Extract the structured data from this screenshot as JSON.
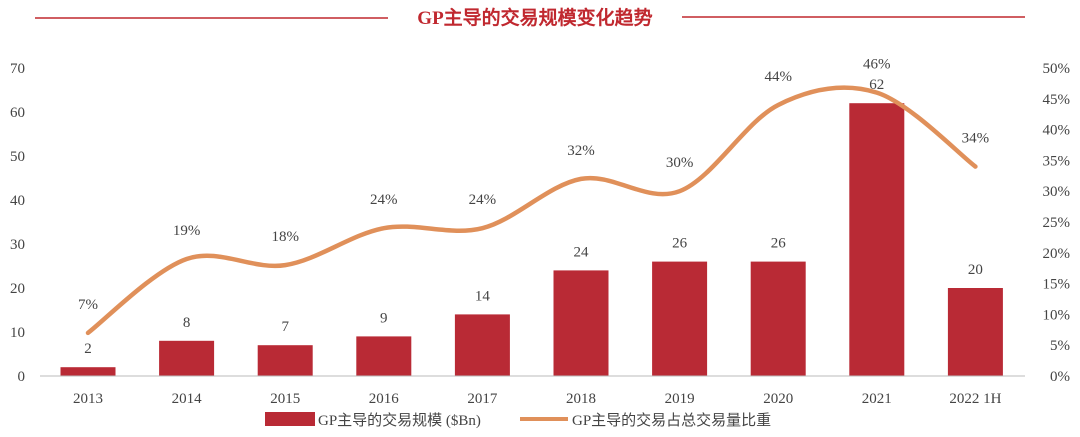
{
  "chart_data": {
    "type": "bar+line",
    "title": "GP主导的交易规模变化趋势",
    "categories": [
      "2013",
      "2014",
      "2015",
      "2016",
      "2017",
      "2018",
      "2019",
      "2020",
      "2021",
      "2022 1H"
    ],
    "series": [
      {
        "name": "GP主导的交易规模 ($Bn)",
        "type": "bar",
        "axis": "left",
        "values": [
          2,
          8,
          7,
          9,
          14,
          24,
          26,
          26,
          62,
          20
        ],
        "labels": [
          "2",
          "8",
          "7",
          "9",
          "14",
          "24",
          "26",
          "26",
          "62",
          "20"
        ],
        "color": "#b92a35"
      },
      {
        "name": "GP主导的交易占总交易量比重",
        "type": "line",
        "axis": "right",
        "values": [
          7,
          19,
          18,
          24,
          24,
          32,
          30,
          44,
          46,
          34
        ],
        "labels": [
          "7%",
          "19%",
          "18%",
          "24%",
          "24%",
          "32%",
          "30%",
          "44%",
          "46%",
          "34%"
        ],
        "color": "#e0905a"
      }
    ],
    "left_axis": {
      "ylim": [
        0,
        70
      ],
      "ticks": [
        "0",
        "10",
        "20",
        "30",
        "40",
        "50",
        "60",
        "70"
      ]
    },
    "right_axis": {
      "ylim": [
        0,
        50
      ],
      "ticks": [
        "0%",
        "5%",
        "10%",
        "15%",
        "20%",
        "25%",
        "30%",
        "35%",
        "40%",
        "45%",
        "50%"
      ]
    },
    "grid": false,
    "legend": "bottom",
    "title_color": "#c0282f"
  }
}
